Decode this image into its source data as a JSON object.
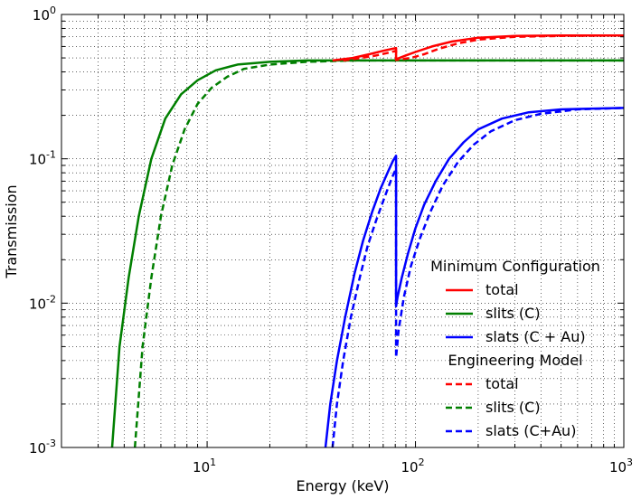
{
  "chart_data": {
    "type": "line",
    "title": "",
    "xlabel": "Energy (keV)",
    "ylabel": "Transmission",
    "xscale": "log",
    "yscale": "log",
    "xlim": [
      2,
      1000
    ],
    "ylim": [
      0.001,
      1
    ],
    "grid": true,
    "x_ticks": [
      {
        "value": 10,
        "base": "10",
        "exp": "1"
      },
      {
        "value": 100,
        "base": "10",
        "exp": "2"
      },
      {
        "value": 1000,
        "base": "10",
        "exp": "3"
      }
    ],
    "y_ticks": [
      {
        "value": 0.001,
        "base": "10",
        "exp": "-3"
      },
      {
        "value": 0.01,
        "base": "10",
        "exp": "-2"
      },
      {
        "value": 0.1,
        "base": "10",
        "exp": "-1"
      },
      {
        "value": 1,
        "base": "10",
        "exp": "0"
      }
    ],
    "legend": {
      "placement": "center-right",
      "groups": [
        {
          "title": "Minimum Configuration",
          "entries": [
            {
              "label": "total",
              "color": "#ff0000",
              "dash": "solid"
            },
            {
              "label": "slits (C)",
              "color": "#007f00",
              "dash": "solid"
            },
            {
              "label": "slats (C + Au)",
              "color": "#0000ff",
              "dash": "solid"
            }
          ]
        },
        {
          "title": "Engineering Model",
          "entries": [
            {
              "label": "total",
              "color": "#ff0000",
              "dash": "dashed"
            },
            {
              "label": "slits (C)",
              "color": "#007f00",
              "dash": "dashed"
            },
            {
              "label": "slats (C+Au)",
              "color": "#0000ff",
              "dash": "dashed"
            }
          ]
        }
      ]
    },
    "series": [
      {
        "name": "slits (C) — Minimum Configuration",
        "color": "#007f00",
        "dash": "solid",
        "x": [
          3.5,
          3.8,
          4.2,
          4.7,
          5.4,
          6.3,
          7.5,
          9,
          11,
          14,
          20,
          30,
          50,
          100,
          300,
          1000
        ],
        "y": [
          0.001,
          0.005,
          0.015,
          0.04,
          0.1,
          0.19,
          0.28,
          0.35,
          0.41,
          0.45,
          0.47,
          0.48,
          0.48,
          0.48,
          0.48,
          0.48
        ]
      },
      {
        "name": "slits (C) — Engineering Model",
        "color": "#007f00",
        "dash": "dashed",
        "x": [
          4.5,
          4.9,
          5.4,
          6.0,
          6.8,
          7.8,
          9,
          10.5,
          12.5,
          15,
          20,
          30,
          50,
          100,
          300,
          1000
        ],
        "y": [
          0.001,
          0.005,
          0.015,
          0.04,
          0.09,
          0.16,
          0.24,
          0.31,
          0.37,
          0.42,
          0.45,
          0.47,
          0.48,
          0.48,
          0.48,
          0.48
        ]
      },
      {
        "name": "slats (C + Au) — Minimum Configuration",
        "color": "#0000ff",
        "dash": "solid",
        "x": [
          37,
          39,
          42,
          46,
          51,
          56,
          62,
          68,
          74,
          78,
          80.7,
          80.7,
          82,
          86,
          92,
          100,
          110,
          125,
          145,
          170,
          200,
          260,
          350,
          500,
          1000
        ],
        "y": [
          0.001,
          0.002,
          0.004,
          0.008,
          0.016,
          0.027,
          0.043,
          0.062,
          0.082,
          0.097,
          0.105,
          0.0095,
          0.011,
          0.015,
          0.022,
          0.033,
          0.048,
          0.07,
          0.1,
          0.13,
          0.16,
          0.19,
          0.21,
          0.22,
          0.225
        ]
      },
      {
        "name": "slats (C+Au) — Engineering Model",
        "color": "#0000ff",
        "dash": "dashed",
        "x": [
          40,
          42,
          45,
          49,
          54,
          59,
          65,
          71,
          76,
          79,
          80.7,
          80.7,
          83,
          88,
          95,
          105,
          118,
          135,
          160,
          190,
          230,
          300,
          400,
          600,
          1000
        ],
        "y": [
          0.001,
          0.002,
          0.004,
          0.008,
          0.015,
          0.025,
          0.038,
          0.054,
          0.07,
          0.08,
          0.085,
          0.0042,
          0.0065,
          0.011,
          0.018,
          0.028,
          0.043,
          0.065,
          0.095,
          0.125,
          0.155,
          0.185,
          0.205,
          0.22,
          0.225
        ]
      },
      {
        "name": "total — Minimum Configuration",
        "color": "#ff0000",
        "dash": "solid",
        "x": [
          40,
          50,
          60,
          70,
          78,
          80.7,
          80.7,
          90,
          100,
          120,
          150,
          200,
          300,
          500,
          1000
        ],
        "y": [
          0.48,
          0.5,
          0.53,
          0.56,
          0.58,
          0.585,
          0.49,
          0.52,
          0.55,
          0.6,
          0.65,
          0.69,
          0.71,
          0.715,
          0.715
        ]
      },
      {
        "name": "total — Engineering Model",
        "color": "#ff0000",
        "dash": "dashed",
        "x": [
          45,
          55,
          65,
          75,
          80.7,
          80.7,
          95,
          110,
          130,
          160,
          200,
          300,
          500,
          1000
        ],
        "y": [
          0.48,
          0.5,
          0.52,
          0.545,
          0.56,
          0.485,
          0.5,
          0.53,
          0.58,
          0.63,
          0.67,
          0.7,
          0.71,
          0.715
        ]
      }
    ]
  }
}
